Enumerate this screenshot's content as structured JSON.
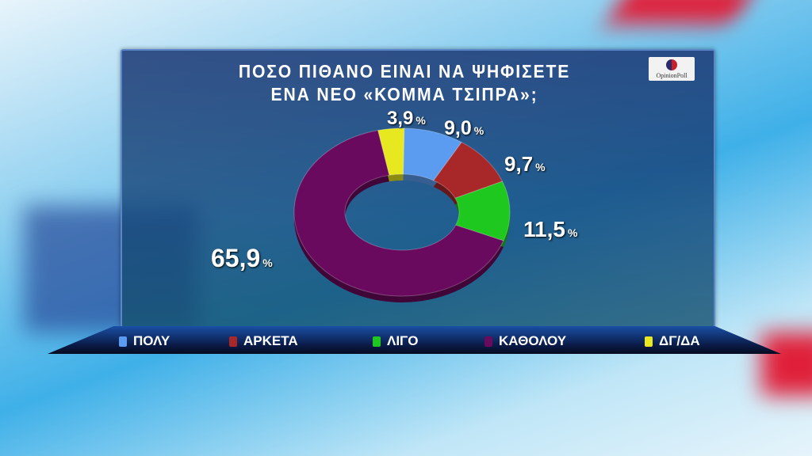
{
  "chart_data": {
    "type": "pie",
    "donut": true,
    "title": "ΠΟΣΟ ΠΙΘΑΝΟ ΕΙΝΑΙ ΝΑ ΨΗΦΙΣΕΤΕ ΕΝΑ ΝΕΟ «ΚΟΜΜΑ ΤΣΙΠΡΑ»;",
    "title_lines": [
      "ΠΟΣΟ ΠΙΘΑΝΟ ΕΙΝΑΙ ΝΑ ΨΗΦΙΣΕΤΕ",
      "ΕΝΑ ΝΕΟ «ΚΟΜΜΑ ΤΣΙΠΡΑ»;"
    ],
    "unit": "%",
    "legend_position": "bottom",
    "slices": [
      {
        "name": "ΠΟΛΥ",
        "value": 9.0,
        "label": "9,0",
        "color": "#5b9cf0"
      },
      {
        "name": "ΑΡΚΕΤΑ",
        "value": 9.7,
        "label": "9,7",
        "color": "#a8282a"
      },
      {
        "name": "ΛΙΓΟ",
        "value": 11.5,
        "label": "11,5",
        "color": "#1ec81e"
      },
      {
        "name": "ΚΑΘΟΛΟΥ",
        "value": 65.9,
        "label": "65,9",
        "color": "#6a0a5e"
      },
      {
        "name": "ΔΓ/ΔΑ",
        "value": 3.9,
        "label": "3,9",
        "color": "#e8e820"
      }
    ]
  },
  "logo": {
    "text": "OpinionPoll"
  }
}
